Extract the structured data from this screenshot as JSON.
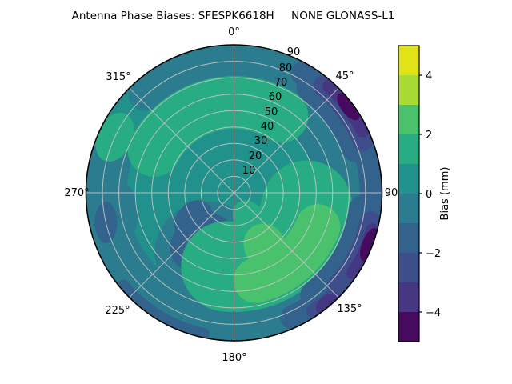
{
  "title": "Antenna Phase Biases: SFESPK6618H     NONE GLONASS-L1",
  "polar": {
    "theta_labels": [
      "0°",
      "45°",
      "90",
      "135°",
      "180°",
      "225°",
      "270°",
      "315°"
    ],
    "radial_labels": [
      "10",
      "20",
      "30",
      "40",
      "50",
      "60",
      "70",
      "80",
      "90"
    ]
  },
  "colorbar": {
    "label": "Bias (mm)",
    "ticks": [
      "4",
      "2",
      "0",
      "−2",
      "−4"
    ],
    "min": -5,
    "max": 5,
    "band_colors_low_to_high": [
      "#460b5e",
      "#453781",
      "#3d4e8b",
      "#33638d",
      "#2a7c8e",
      "#21918c",
      "#27ad81",
      "#4ac16d",
      "#a8db34",
      "#dfe318"
    ],
    "grid_color": "#c6c6c6",
    "spine_color": "#000000"
  },
  "chart_data": {
    "type": "heatmap",
    "projection": "polar",
    "title": "Antenna Phase Biases: SFESPK6618H     NONE GLONASS-L1",
    "colorbar_label": "Bias (mm)",
    "value_range_mm": [
      -5,
      5
    ],
    "contour_levels_mm": [
      -5,
      -4,
      -3,
      -2,
      -1,
      0,
      1,
      2,
      3,
      4,
      5
    ],
    "colorbar_tick_values": [
      4,
      2,
      0,
      -2,
      -4
    ],
    "theta_ticks_deg": [
      0,
      45,
      90,
      135,
      180,
      225,
      270,
      315
    ],
    "radial_ticks": [
      10,
      20,
      30,
      40,
      50,
      60,
      70,
      80,
      90
    ],
    "radial_label_angle_deg": 22.5,
    "grid": true,
    "legend_position": "right-colorbar",
    "background_value_mm": 0.5,
    "features": [
      {
        "region": "upper-sky green arc",
        "azimuth_deg": [
          298,
          32
        ],
        "radius": [
          38,
          72
        ],
        "value_mm": 1.5
      },
      {
        "region": "west rim green patch",
        "azimuth_deg": [
          286,
          304
        ],
        "radius": [
          68,
          90
        ],
        "value_mm": 1.5
      },
      {
        "region": "southeast positive blob",
        "azimuth_deg": [
          100,
          186
        ],
        "radius": [
          8,
          83
        ],
        "value_mm": 1.5
      },
      {
        "region": "southeast positive core",
        "azimuth_deg": [
          112,
          168
        ],
        "radius": [
          25,
          72
        ],
        "value_mm": 2.5
      },
      {
        "region": "southwest negative blob",
        "azimuth_deg": [
          180,
          255
        ],
        "radius": [
          5,
          60
        ],
        "value_mm": -0.5
      },
      {
        "region": "southwest negative core",
        "azimuth_deg": [
          190,
          240
        ],
        "radius": [
          12,
          52
        ],
        "value_mm": -1.5
      },
      {
        "region": "rim ring (top, bottom, west)",
        "azimuth_deg": [
          150,
          42
        ],
        "radius": [
          70,
          90
        ],
        "value_mm": -0.5
      },
      {
        "region": "east rim band",
        "azimuth_deg": [
          20,
          162
        ],
        "radius": [
          73,
          90
        ],
        "value_mm": -1.5
      },
      {
        "region": "northeast rim",
        "azimuth_deg": [
          40,
          68
        ],
        "radius": [
          78,
          90
        ],
        "value_mm": -2.5
      },
      {
        "region": "northeast rim deep",
        "azimuth_deg": [
          42,
          64
        ],
        "radius": [
          82,
          90
        ],
        "value_mm": -3.5
      },
      {
        "region": "northeast rim deepest",
        "azimuth_deg": [
          50,
          58
        ],
        "radius": [
          85,
          90
        ],
        "value_mm": -4.5
      },
      {
        "region": "east-southeast rim",
        "azimuth_deg": [
          102,
          132
        ],
        "radius": [
          80,
          90
        ],
        "value_mm": -3.5
      },
      {
        "region": "east-southeast rim deepest",
        "azimuth_deg": [
          107,
          116
        ],
        "radius": [
          86,
          90
        ],
        "value_mm": -4.5
      },
      {
        "region": "135-deg rim dark spot",
        "azimuth_deg": [
          136,
          146
        ],
        "radius": [
          84,
          90
        ],
        "value_mm": -2.5
      }
    ]
  }
}
